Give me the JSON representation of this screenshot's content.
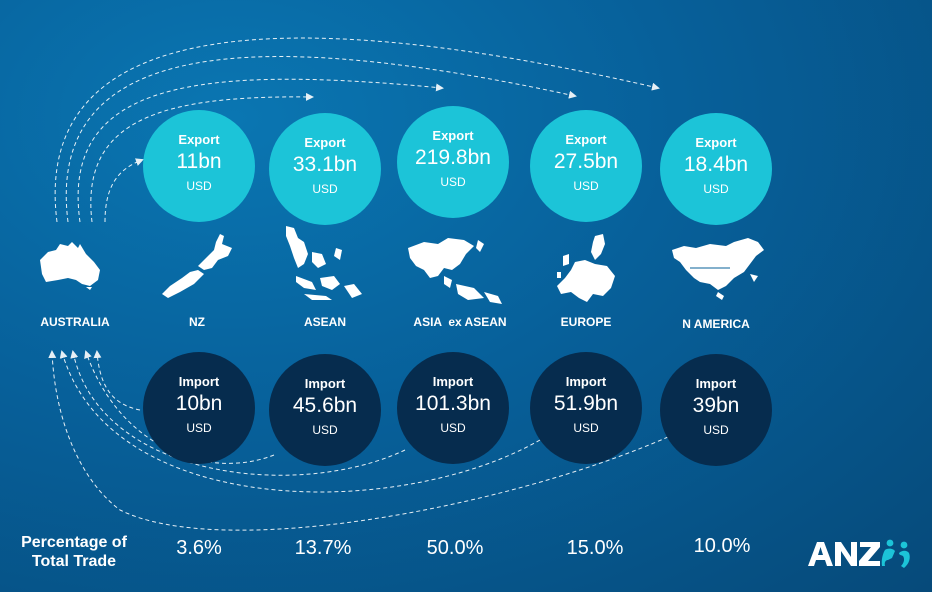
{
  "regions": [
    {
      "name": "AUSTRALIA"
    },
    {
      "name": "NZ",
      "export": {
        "label": "Export",
        "amount": "11bn",
        "currency": "USD"
      },
      "import": {
        "label": "Import",
        "amount": "10bn",
        "currency": "USD"
      },
      "pct": "3.6%"
    },
    {
      "name": "ASEAN",
      "export": {
        "label": "Export",
        "amount": "33.1bn",
        "currency": "USD"
      },
      "import": {
        "label": "Import",
        "amount": "45.6bn",
        "currency": "USD"
      },
      "pct": "13.7%"
    },
    {
      "name": "ASIA  ex ASEAN",
      "export": {
        "label": "Export",
        "amount": "219.8bn",
        "currency": "USD"
      },
      "import": {
        "label": "Import",
        "amount": "101.3bn",
        "currency": "USD"
      },
      "pct": "50.0%"
    },
    {
      "name": "EUROPE",
      "export": {
        "label": "Export",
        "amount": "27.5bn",
        "currency": "USD"
      },
      "import": {
        "label": "Import",
        "amount": "51.9bn",
        "currency": "USD"
      },
      "pct": "15.0%"
    },
    {
      "name": "N AMERICA",
      "export": {
        "label": "Export",
        "amount": "18.4bn",
        "currency": "USD"
      },
      "import": {
        "label": "Import",
        "amount": "39bn",
        "currency": "USD"
      },
      "pct": "10.0%"
    }
  ],
  "percentage_label_line1": "Percentage of",
  "percentage_label_line2": "Total Trade",
  "logo_text": "ANZ",
  "colors": {
    "export_circle": "#1cc4d8",
    "import_circle": "#062c4e",
    "background": "#07609a",
    "arrow": "#ffffff"
  }
}
